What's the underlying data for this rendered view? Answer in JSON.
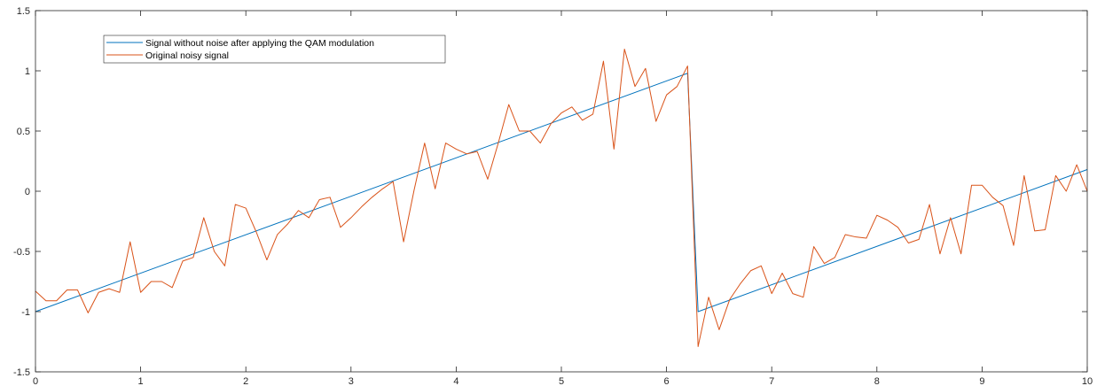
{
  "chart_data": {
    "type": "line",
    "title": "",
    "xlabel": "",
    "ylabel": "",
    "xlim": [
      0,
      10
    ],
    "ylim": [
      -1.5,
      1.5
    ],
    "grid": false,
    "legend_position": "top-left",
    "x_ticks": [
      0,
      1,
      2,
      3,
      4,
      5,
      6,
      7,
      8,
      9,
      10
    ],
    "x_tick_labels": [
      "0",
      "1",
      "2",
      "3",
      "4",
      "5",
      "6",
      "7",
      "8",
      "9",
      "10"
    ],
    "y_ticks": [
      -1.5,
      -1,
      -0.5,
      0,
      0.5,
      1,
      1.5
    ],
    "y_tick_labels": [
      "-1.5",
      "-1",
      "-0.5",
      "0",
      "0.5",
      "1",
      "1.5"
    ],
    "series": [
      {
        "name": "Signal without noise after applying the QAM modulation",
        "color": "#0072BD",
        "x": [
          0,
          6.2,
          6.3,
          10
        ],
        "y": [
          -1.0,
          0.98,
          -1.0,
          0.18
        ]
      },
      {
        "name": "Original noisy signal",
        "color": "#D95319",
        "x": [
          0,
          0.1,
          0.2,
          0.3,
          0.4,
          0.5,
          0.6,
          0.7,
          0.8,
          0.9,
          1.0,
          1.1,
          1.2,
          1.3,
          1.4,
          1.5,
          1.6,
          1.7,
          1.8,
          1.9,
          2.0,
          2.1,
          2.2,
          2.3,
          2.4,
          2.5,
          2.6,
          2.7,
          2.8,
          2.9,
          3.0,
          3.1,
          3.2,
          3.3,
          3.4,
          3.5,
          3.6,
          3.7,
          3.8,
          3.9,
          4.0,
          4.1,
          4.2,
          4.3,
          4.4,
          4.5,
          4.6,
          4.7,
          4.8,
          4.9,
          5.0,
          5.1,
          5.2,
          5.3,
          5.4,
          5.5,
          5.6,
          5.7,
          5.8,
          5.9,
          6.0,
          6.1,
          6.2,
          6.3,
          6.4,
          6.5,
          6.6,
          6.7,
          6.8,
          6.9,
          7.0,
          7.1,
          7.2,
          7.3,
          7.4,
          7.5,
          7.6,
          7.7,
          7.8,
          7.9,
          8.0,
          8.1,
          8.2,
          8.3,
          8.4,
          8.5,
          8.6,
          8.7,
          8.8,
          8.9,
          9.0,
          9.1,
          9.2,
          9.3,
          9.4,
          9.5,
          9.6,
          9.7,
          9.8,
          9.9,
          10.0
        ],
        "y": [
          -0.83,
          -0.91,
          -0.91,
          -0.82,
          -0.82,
          -1.01,
          -0.84,
          -0.81,
          -0.84,
          -0.42,
          -0.84,
          -0.75,
          -0.75,
          -0.8,
          -0.58,
          -0.55,
          -0.22,
          -0.5,
          -0.62,
          -0.11,
          -0.14,
          -0.34,
          -0.57,
          -0.36,
          -0.27,
          -0.16,
          -0.22,
          -0.07,
          -0.05,
          -0.3,
          -0.22,
          -0.13,
          -0.05,
          0.02,
          0.08,
          -0.42,
          0.01,
          0.4,
          0.02,
          0.4,
          0.35,
          0.31,
          0.33,
          0.1,
          0.4,
          0.72,
          0.5,
          0.5,
          0.4,
          0.56,
          0.65,
          0.7,
          0.59,
          0.64,
          1.08,
          0.35,
          1.18,
          0.87,
          1.02,
          0.58,
          0.8,
          0.87,
          1.04,
          -1.29,
          -0.88,
          -1.15,
          -0.9,
          -0.77,
          -0.66,
          -0.62,
          -0.85,
          -0.68,
          -0.85,
          -0.88,
          -0.46,
          -0.6,
          -0.55,
          -0.36,
          -0.38,
          -0.39,
          -0.2,
          -0.24,
          -0.3,
          -0.43,
          -0.4,
          -0.11,
          -0.52,
          -0.22,
          -0.52,
          0.05,
          0.05,
          -0.05,
          -0.12,
          -0.45,
          0.13,
          -0.33,
          -0.32,
          0.13,
          0.0,
          0.22,
          0.0
        ]
      }
    ]
  }
}
